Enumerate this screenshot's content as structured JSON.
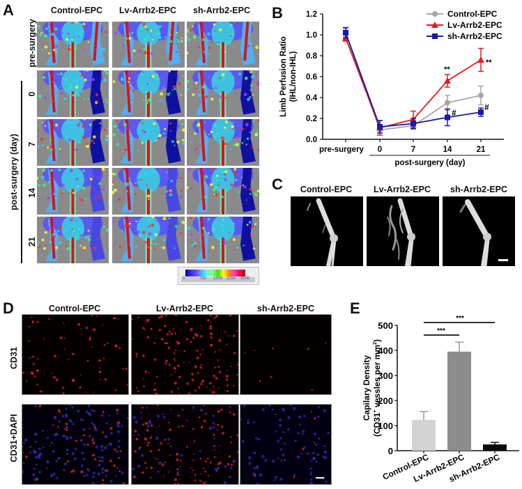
{
  "panels": {
    "A": {
      "label": "A",
      "columns": [
        "Control-EPC",
        "Lv-Arrb2-EPC",
        "sh-Arrb2-EPC"
      ],
      "rows": [
        "pre-surgery",
        "0",
        "7",
        "14",
        "21"
      ],
      "group_label": "post-surgery (day)",
      "colorbar": {
        "ticks": [
          "0",
          "750",
          "1500",
          "2250",
          "3000"
        ],
        "colors": [
          "#00008b",
          "#3030ff",
          "#8040ff",
          "#40c0ff",
          "#60ffe0",
          "#80ff80",
          "#40e000",
          "#ffff00",
          "#ff8000",
          "#ff40c0",
          "#ff0040",
          "#c00000"
        ]
      }
    },
    "B": {
      "label": "B"
    },
    "C": {
      "label": "C",
      "columns": [
        "Control-EPC",
        "Lv-Arrb2-EPC",
        "sh-Arrb2-EPC"
      ]
    },
    "D": {
      "label": "D",
      "columns": [
        "Control-EPC",
        "Lv-Arrb2-EPC",
        "sh-Arrb2-EPC"
      ],
      "rows": [
        "CD31",
        "CD31+DAPI"
      ]
    },
    "E": {
      "label": "E"
    }
  },
  "chart_data": [
    {
      "panel": "B",
      "type": "line",
      "title": "",
      "xlabel": "post-surgery (day)",
      "ylabel": "Limb Perfusion Ratio (IHL/non-IHL)",
      "categories": [
        "pre-surgery",
        "0",
        "7",
        "14",
        "21"
      ],
      "ylim": [
        0,
        1.2
      ],
      "yticks": [
        "0.0",
        "0.2",
        "0.4",
        "0.6",
        "0.8",
        "1.0",
        "1.2"
      ],
      "grid": false,
      "legend_position": "top-right",
      "series": [
        {
          "name": "Control-EPC",
          "color": "#a6a6a6",
          "marker": "circle",
          "values": [
            1.02,
            0.09,
            0.13,
            0.35,
            0.42
          ],
          "errors": [
            0.04,
            0.03,
            0.03,
            0.07,
            0.09
          ]
        },
        {
          "name": "Lv-Arrb2-EPC",
          "color": "#e8191c",
          "marker": "triangle",
          "values": [
            0.97,
            0.11,
            0.19,
            0.56,
            0.76
          ],
          "errors": [
            0.03,
            0.07,
            0.08,
            0.06,
            0.11
          ]
        },
        {
          "name": "sh-Arrb2-EPC",
          "color": "#1a1aa8",
          "marker": "square",
          "values": [
            1.02,
            0.12,
            0.15,
            0.21,
            0.26
          ],
          "errors": [
            0.05,
            0.06,
            0.05,
            0.08,
            0.04
          ]
        }
      ],
      "annotations": [
        {
          "text": "**",
          "x": "14",
          "series": "Lv-Arrb2-EPC",
          "position": "above"
        },
        {
          "text": "**",
          "x": "21",
          "series": "Lv-Arrb2-EPC",
          "position": "right"
        },
        {
          "text": "#",
          "x": "14",
          "series": "sh-Arrb2-EPC",
          "position": "right"
        },
        {
          "text": "#",
          "x": "21",
          "series": "sh-Arrb2-EPC",
          "position": "right"
        }
      ]
    },
    {
      "panel": "E",
      "type": "bar",
      "title": "",
      "xlabel": "",
      "ylabel": "Capilary Density (CD31+ vessles per mm2)",
      "ylabel_line1": "Capilary Density",
      "ylabel_line2": "(CD31",
      "ylabel_sup1": "+",
      "ylabel_line2b": " vessles per mm",
      "ylabel_sup2": "2",
      "ylabel_end": ")",
      "categories": [
        "Control-EPC",
        "Lv-Arrb2-EPC",
        "sh-Arrb2-EPC"
      ],
      "values": [
        123,
        395,
        25
      ],
      "errors": [
        33,
        38,
        8
      ],
      "colors": [
        "#d3d3d3",
        "#8c8c8c",
        "#0a0a0a"
      ],
      "ylim": [
        0,
        500
      ],
      "yticks": [
        "0",
        "100",
        "200",
        "300",
        "400",
        "500"
      ],
      "grid": false,
      "significance": [
        {
          "from": "Control-EPC",
          "to": "Lv-Arrb2-EPC",
          "text": "***"
        },
        {
          "from": "Control-EPC",
          "to": "sh-Arrb2-EPC",
          "text": "***"
        }
      ]
    }
  ]
}
